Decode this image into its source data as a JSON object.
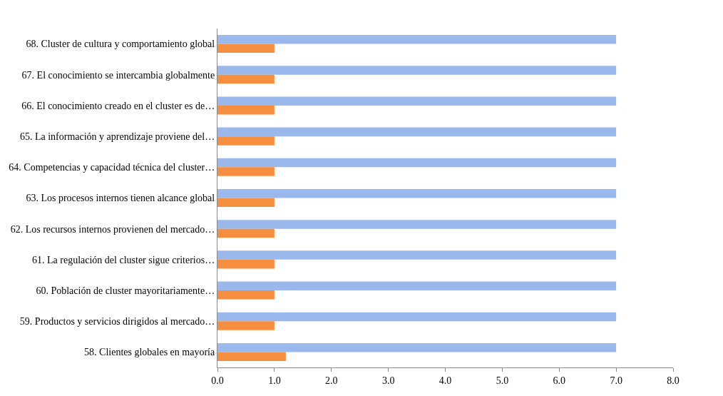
{
  "chart_data": {
    "type": "bar",
    "orientation": "horizontal",
    "categories": [
      "68. Cluster de cultura y comportamiento global",
      "67. El conocimiento se intercambia globalmente",
      "66. El conocimiento creado en el cluster es de…",
      "65. La información y aprendizaje proviene del…",
      "64. Competencias y capacidad técnica del cluster…",
      "63. Los procesos internos tienen alcance global",
      "62. Los recursos internos provienen del mercado…",
      "61. La regulación del cluster sigue criterios…",
      "60. Población de cluster mayoritariamente…",
      "59. Productos y servicios dirigidos al mercado…",
      "58. Clientes globales en mayoría"
    ],
    "series": [
      {
        "color": "#9bb8ec",
        "values": [
          7.0,
          7.0,
          7.0,
          7.0,
          7.0,
          7.0,
          7.0,
          7.0,
          7.0,
          7.0,
          7.0
        ]
      },
      {
        "color": "#f68e3f",
        "values": [
          1.0,
          1.0,
          1.0,
          1.0,
          1.0,
          1.0,
          1.0,
          1.0,
          1.0,
          1.0,
          1.2
        ]
      }
    ],
    "xlim": [
      0,
      8
    ],
    "xticks": [
      {
        "value": 0,
        "label": "0.0"
      },
      {
        "value": 1,
        "label": "1.0"
      },
      {
        "value": 2,
        "label": "2.0"
      },
      {
        "value": 3,
        "label": "3.0"
      },
      {
        "value": 4,
        "label": "4.0"
      },
      {
        "value": 5,
        "label": "5.0"
      },
      {
        "value": 6,
        "label": "6.0"
      },
      {
        "value": 7,
        "label": "7.0"
      },
      {
        "value": 8,
        "label": "8.0"
      }
    ],
    "tick_labels": true
  }
}
